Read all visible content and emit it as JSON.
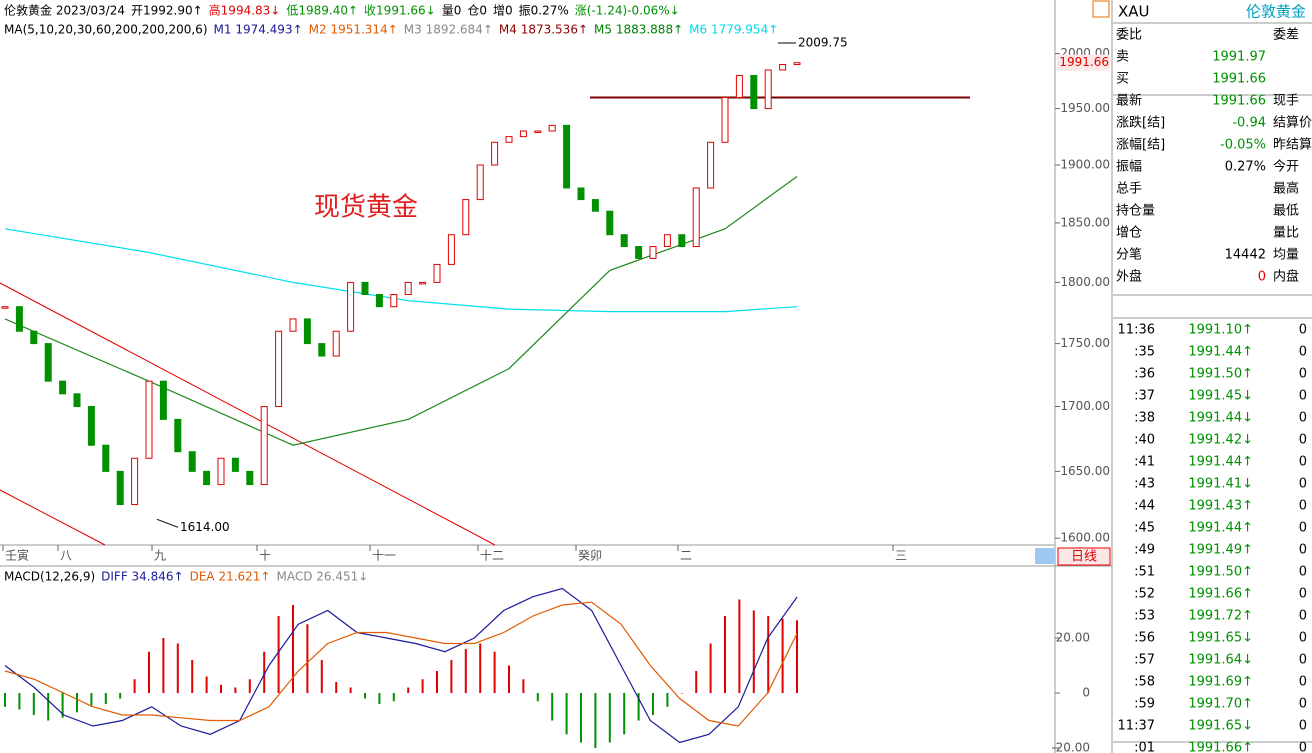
{
  "header": {
    "segments": [
      {
        "text": "伦敦黄金 2023/03/24",
        "color": "#000000"
      },
      {
        "text": "开1992.90↑",
        "color": "#000000"
      },
      {
        "text": "高1994.83↓",
        "color": "#e00000"
      },
      {
        "text": "低1989.40↑",
        "color": "#009000"
      },
      {
        "text": "收1991.66↓",
        "color": "#009000"
      },
      {
        "text": "量0",
        "color": "#000000"
      },
      {
        "text": "仓0",
        "color": "#000000"
      },
      {
        "text": "增0",
        "color": "#000000"
      },
      {
        "text": "振0.27%",
        "color": "#000000"
      },
      {
        "text": "涨(-1.24)-0.06%↓",
        "color": "#009000"
      }
    ]
  },
  "ma_legend": [
    {
      "text": "MA(5,10,20,30,60,200,200,200,6)",
      "color": "#000000"
    },
    {
      "text": "M1 1974.493↑",
      "color": "#1a1a9a"
    },
    {
      "text": "M2 1951.314↑",
      "color": "#e05a00"
    },
    {
      "text": "M3 1892.684↑",
      "color": "#888888"
    },
    {
      "text": "M4 1873.536↑",
      "color": "#8b0000"
    },
    {
      "text": "M5 1883.888↑",
      "color": "#008000"
    },
    {
      "text": "M6 1779.954↑",
      "color": "#00d8e8"
    }
  ],
  "main_chart": {
    "title": "现货黄金",
    "scale": "log",
    "ylim": [
      1595,
      2050
    ],
    "yticks": [
      {
        "value": 2000,
        "label": "2000.00"
      },
      {
        "value": 1950,
        "label": "1950.00"
      },
      {
        "value": 1900,
        "label": "1900.00"
      },
      {
        "value": 1850,
        "label": "1850.00"
      },
      {
        "value": 1800,
        "label": "1800.00"
      },
      {
        "value": 1750,
        "label": "1750.00"
      },
      {
        "value": 1700,
        "label": "1700.00"
      },
      {
        "value": 1650,
        "label": "1650.00"
      },
      {
        "value": 1600,
        "label": "1600.00"
      }
    ],
    "closes": [
      1780,
      1760,
      1750,
      1720,
      1710,
      1700,
      1670,
      1650,
      1625,
      1660,
      1720,
      1690,
      1665,
      1650,
      1640,
      1660,
      1650,
      1640,
      1700,
      1760,
      1770,
      1750,
      1740,
      1760,
      1800,
      1790,
      1780,
      1790,
      1800,
      1800,
      1815,
      1840,
      1870,
      1900,
      1920,
      1925,
      1930,
      1930,
      1935,
      1880,
      1870,
      1860,
      1840,
      1830,
      1820,
      1830,
      1840,
      1830,
      1880,
      1920,
      1960,
      1980,
      1950,
      1985,
      1990,
      1991.66
    ],
    "up_color": "#e00000",
    "down_color": "#009000",
    "ma_lines": [
      {
        "color": "#00e0ee",
        "x": [
          0,
          10,
          20,
          28,
          35,
          42,
          50,
          55
        ],
        "values": [
          1845,
          1825,
          1800,
          1785,
          1778,
          1776,
          1776,
          1780
        ]
      },
      {
        "color": "#1f8a1f",
        "x": [
          0,
          10,
          20,
          28,
          35,
          42,
          50,
          55
        ],
        "values": [
          1770,
          1720,
          1670,
          1690,
          1730,
          1810,
          1845,
          1890
        ]
      }
    ],
    "resistance": {
      "value": 1960,
      "color": "#7a0000"
    },
    "high": 2009.75,
    "low": {
      "value": 1614,
      "label": "1614.00"
    },
    "last_price": 1991.66,
    "time_labels": [
      "壬寅",
      "八",
      "九",
      "十",
      "十一",
      "十二",
      "癸卯",
      "二",
      "三"
    ],
    "period": "日线"
  },
  "macd": {
    "legend": [
      {
        "text": "MACD(12,26,9)",
        "color": "#000000"
      },
      {
        "text": "DIFF 34.846↑",
        "color": "#1a1a9a"
      },
      {
        "text": "DEA 21.621↑",
        "color": "#e05a00"
      },
      {
        "text": "MACD 26.451↓",
        "color": "#888888"
      }
    ],
    "ylim": [
      -21.8,
      45.8
    ],
    "yticks": [
      {
        "value": 20,
        "label": "20.00"
      },
      0,
      {
        "value": -20,
        "label": "-20.00"
      }
    ],
    "histogram": [
      -5,
      -6,
      -8,
      -10,
      -9,
      -7,
      -5,
      -4,
      -2,
      5,
      15,
      20,
      18,
      12,
      6,
      3,
      2,
      5,
      15,
      28,
      32,
      25,
      12,
      4,
      2,
      -2,
      -4,
      -3,
      2,
      5,
      8,
      12,
      16,
      18,
      15,
      10,
      5,
      -3,
      -10,
      -15,
      -18,
      -20,
      -18,
      -15,
      -10,
      -8,
      -5,
      0,
      8,
      18,
      28,
      34,
      30,
      28,
      27,
      26.451
    ],
    "up_color": "#e00000",
    "down_color": "#009000",
    "diff": {
      "color": "#1a1a9a",
      "values": [
        10,
        2,
        -8,
        -12,
        -10,
        -5,
        -12,
        -15,
        -10,
        10,
        25,
        30,
        22,
        20,
        18,
        15,
        20,
        30,
        35,
        38,
        30,
        10,
        -10,
        -18,
        -15,
        -5,
        20,
        34.846
      ]
    },
    "dea": {
      "color": "#e05a00",
      "values": [
        8,
        5,
        0,
        -5,
        -8,
        -8,
        -9,
        -10,
        -10,
        -5,
        8,
        18,
        22,
        22,
        20,
        18,
        18,
        22,
        28,
        32,
        33,
        25,
        10,
        -2,
        -10,
        -12,
        0,
        21.621
      ]
    }
  },
  "quote_panel": {
    "symbol": "XAU",
    "name": "伦敦黄金",
    "rows": [
      {
        "label": "委比",
        "right": "委差"
      },
      {
        "label": "卖",
        "value": 1991.97,
        "color": "#009000"
      },
      {
        "label": "买",
        "value": 1991.66,
        "color": "#009000"
      },
      {
        "label": "最新",
        "value": 1991.66,
        "color": "#009000",
        "right": "现手"
      },
      {
        "label": "涨跌[结]",
        "value": -0.94,
        "color": "#009000",
        "right": "结算价"
      },
      {
        "label": "涨幅[结]",
        "value": "-0.05%",
        "color": "#009000",
        "right": "昨结算"
      },
      {
        "label": "振幅",
        "value": "0.27%",
        "color": "#000000",
        "right": "今开"
      },
      {
        "label": "总手",
        "right": "最高"
      },
      {
        "label": "持仓量",
        "right": "最低"
      },
      {
        "label": "增仓",
        "right": "量比"
      },
      {
        "label": "分笔",
        "value": 14442,
        "color": "#000000",
        "right": "均量"
      },
      {
        "label": "外盘",
        "value": 0,
        "color": "#e00000",
        "right": "内盘"
      }
    ],
    "ticks": [
      {
        "time": "11:36",
        "price": "1991.10↑",
        "vol": 0
      },
      {
        "time": ":35",
        "price": "1991.44↑",
        "vol": 0
      },
      {
        "time": ":36",
        "price": "1991.50↑",
        "vol": 0
      },
      {
        "time": ":37",
        "price": "1991.45↓",
        "vol": 0
      },
      {
        "time": ":38",
        "price": "1991.44↓",
        "vol": 0
      },
      {
        "time": ":40",
        "price": "1991.42↓",
        "vol": 0
      },
      {
        "time": ":41",
        "price": "1991.44↑",
        "vol": 0
      },
      {
        "time": ":43",
        "price": "1991.41↓",
        "vol": 0
      },
      {
        "time": ":44",
        "price": "1991.43↑",
        "vol": 0
      },
      {
        "time": ":45",
        "price": "1991.44↑",
        "vol": 0
      },
      {
        "time": ":49",
        "price": "1991.49↑",
        "vol": 0
      },
      {
        "time": ":51",
        "price": "1991.50↑",
        "vol": 0
      },
      {
        "time": ":52",
        "price": "1991.66↑",
        "vol": 0
      },
      {
        "time": ":53",
        "price": "1991.72↑",
        "vol": 0
      },
      {
        "time": ":56",
        "price": "1991.65↓",
        "vol": 0
      },
      {
        "time": ":57",
        "price": "1991.64↓",
        "vol": 0
      },
      {
        "time": ":58",
        "price": "1991.69↑",
        "vol": 0
      },
      {
        "time": ":59",
        "price": "1991.70↑",
        "vol": 0
      },
      {
        "time": "11:37",
        "price": "1991.65↓",
        "vol": 0
      },
      {
        "time": ":01",
        "price": "1991.66↑",
        "vol": 0
      }
    ]
  }
}
